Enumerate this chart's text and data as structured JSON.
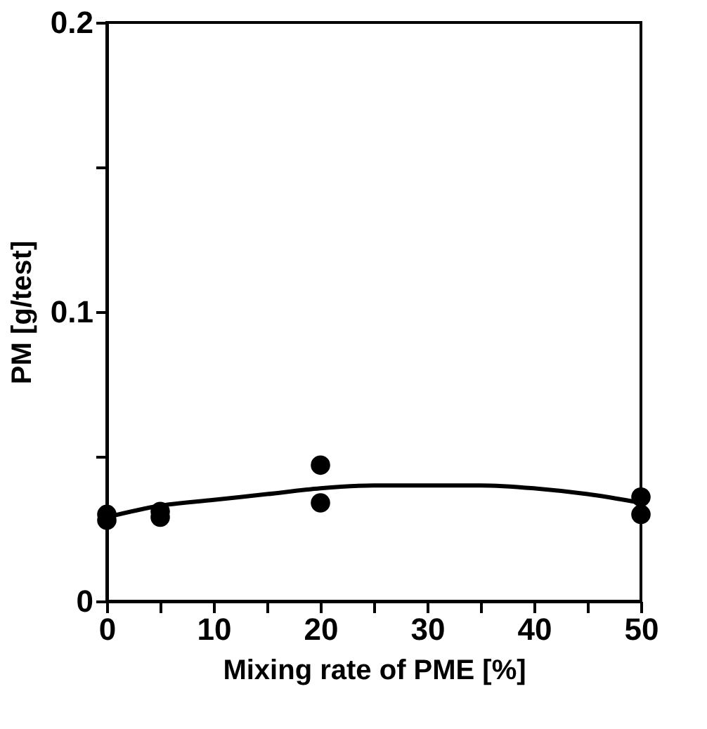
{
  "chart_data": {
    "type": "scatter",
    "xlabel": "Mixing rate of PME [%]",
    "ylabel": "PM [g/test]",
    "xlim": [
      0,
      50
    ],
    "ylim": [
      0,
      0.2
    ],
    "xticks": [
      0,
      {
        "value": 5,
        "label": null
      },
      10,
      {
        "value": 15,
        "label": null
      },
      20,
      {
        "value": 25,
        "label": null
      },
      30,
      {
        "value": 35,
        "label": null
      },
      40,
      {
        "value": 45,
        "label": null
      },
      50
    ],
    "yticks": [
      0,
      {
        "value": 0.05,
        "label": null
      },
      0.1,
      {
        "value": 0.15,
        "label": null
      },
      0.2
    ],
    "grid": false,
    "series": [
      {
        "marker": "circle",
        "color": "#000000",
        "x": [
          0,
          0,
          5,
          5,
          20,
          20,
          50,
          50
        ],
        "values": [
          0.03,
          0.028,
          0.029,
          0.031,
          0.047,
          0.034,
          0.036,
          0.03
        ]
      },
      {
        "type": "line",
        "color": "#000000",
        "line_style": "solid",
        "marker": "none",
        "x": [
          0,
          5,
          10,
          15,
          20,
          25,
          30,
          35,
          40,
          45,
          50
        ],
        "values": [
          0.029,
          0.033,
          0.035,
          0.037,
          0.039,
          0.04,
          0.04,
          0.04,
          0.039,
          0.037,
          0.034
        ]
      }
    ]
  }
}
